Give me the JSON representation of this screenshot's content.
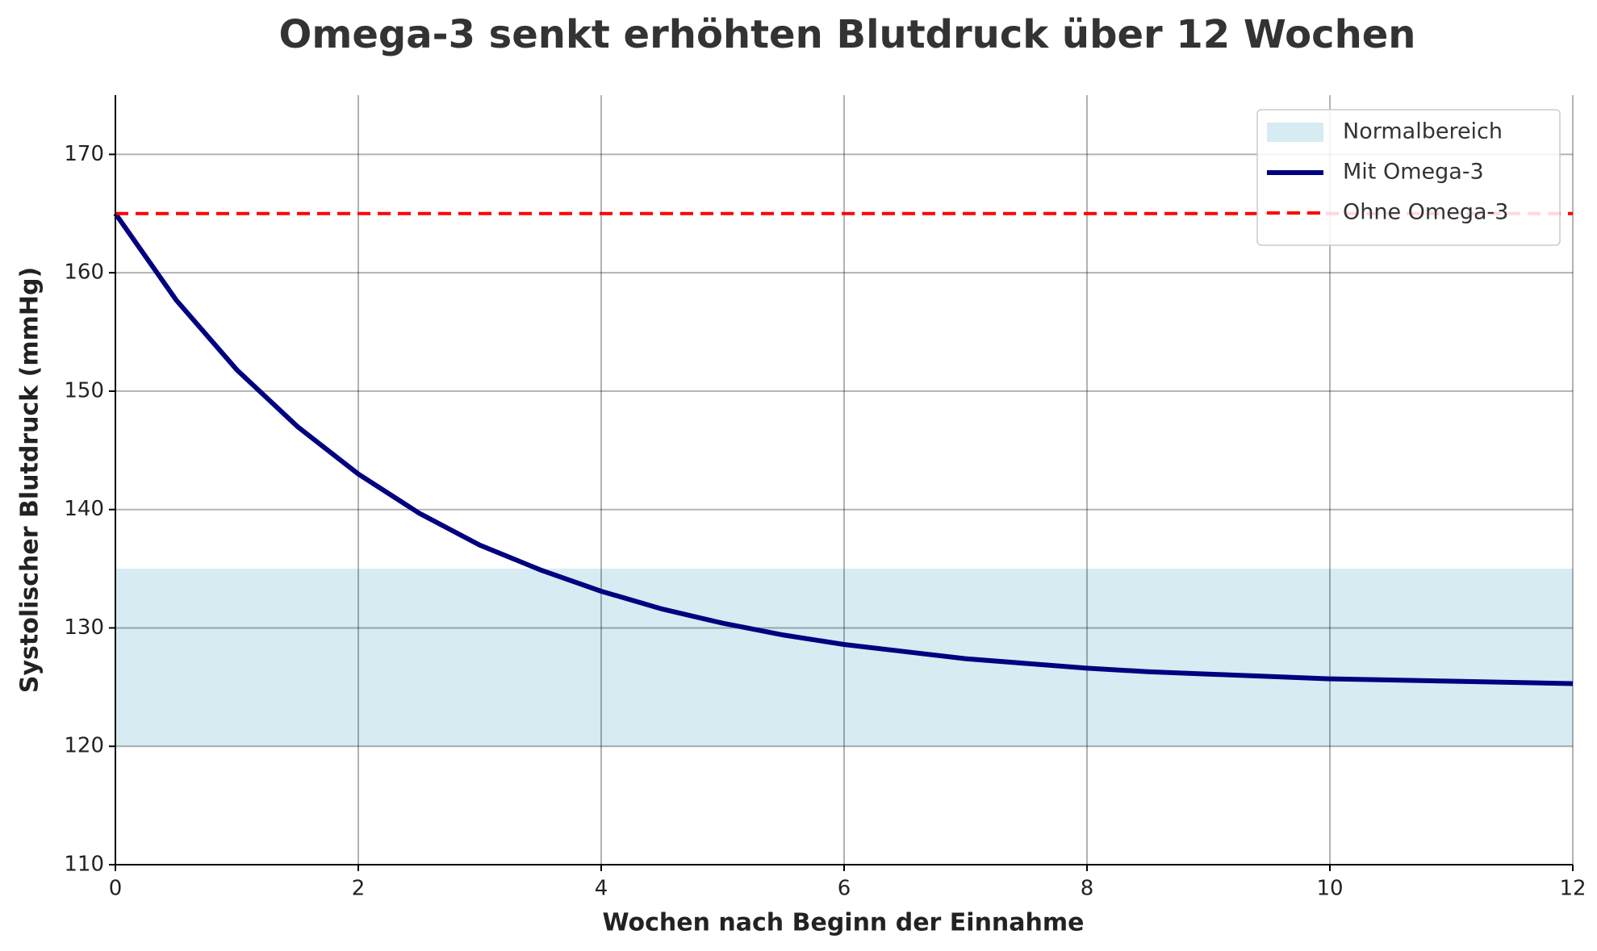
{
  "chart_data": {
    "type": "line",
    "title": "Omega-3 senkt erhöhten Blutdruck über 12 Wochen",
    "x_label": "Wochen nach Beginn der Einnahme",
    "y_label": "Systolischer Blutdruck (mmHg)",
    "x": [
      0,
      0.5,
      1,
      1.5,
      2,
      2.5,
      3,
      3.5,
      4,
      4.5,
      5,
      5.5,
      6,
      6.5,
      7,
      7.5,
      8,
      8.5,
      9,
      9.5,
      10,
      10.5,
      11,
      11.5,
      12
    ],
    "series": [
      {
        "name": "Mit Omega-3",
        "color": "#000080",
        "style": "solid",
        "values": [
          165,
          157.7,
          151.8,
          147.0,
          143.0,
          139.7,
          137.0,
          134.9,
          133.1,
          131.6,
          130.4,
          129.4,
          128.6,
          128.0,
          127.4,
          127.0,
          126.6,
          126.3,
          126.1,
          125.9,
          125.7,
          125.6,
          125.5,
          125.4,
          125.3
        ]
      },
      {
        "name": "Ohne Omega-3",
        "color": "#ff0000",
        "style": "dashed",
        "values": [
          165,
          165,
          165,
          165,
          165,
          165,
          165,
          165,
          165,
          165,
          165,
          165,
          165,
          165,
          165,
          165,
          165,
          165,
          165,
          165,
          165,
          165,
          165,
          165,
          165
        ]
      }
    ],
    "bands": [
      {
        "name": "Normalbereich",
        "color": "#add8e6",
        "y0": 120,
        "y1": 135
      }
    ],
    "xlim": [
      0,
      12
    ],
    "xticks": [
      0,
      2,
      4,
      6,
      8,
      10,
      12
    ],
    "ylim": [
      110,
      175
    ],
    "yticks": [
      110,
      120,
      130,
      140,
      150,
      160,
      170
    ],
    "grid": true,
    "legend": "upper right"
  }
}
